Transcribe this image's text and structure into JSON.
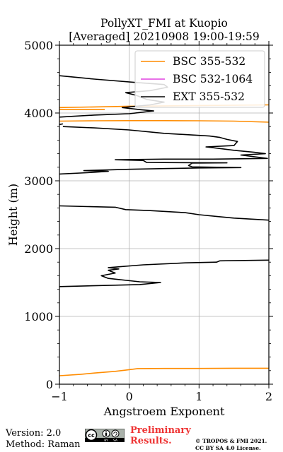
{
  "chart_data": {
    "type": "line",
    "title": "PollyXT_FMI at Kuopio",
    "subtitle": "[Averaged] 20210908 19:00-19:59",
    "xlabel": "Angstroem Exponent",
    "ylabel": "Height (m)",
    "xlim": [
      -1,
      2
    ],
    "ylim": [
      0,
      5000
    ],
    "x_ticks": [
      -1,
      0,
      1,
      2
    ],
    "x_tick_labels": [
      "−1",
      "0",
      "1",
      "2"
    ],
    "y_ticks": [
      0,
      1000,
      2000,
      3000,
      4000,
      5000
    ],
    "y_tick_labels": [
      "0",
      "1000",
      "2000",
      "3000",
      "4000",
      "5000"
    ],
    "grid": true,
    "legend_position": "top-right",
    "series": [
      {
        "name": "BSC 355-532",
        "color": "#ff8c00",
        "segments": [
          [
            [
              -1.0,
              125
            ],
            [
              -0.7,
              145
            ],
            [
              -0.5,
              165
            ],
            [
              -0.2,
              190
            ],
            [
              0.0,
              215
            ],
            [
              0.12,
              230
            ],
            [
              0.5,
              232
            ],
            [
              1.0,
              232
            ],
            [
              1.5,
              235
            ],
            [
              2.0,
              235
            ]
          ],
          [
            [
              -1.0,
              3880
            ],
            [
              -0.5,
              3885
            ],
            [
              0.0,
              3888
            ],
            [
              0.5,
              3887
            ],
            [
              1.0,
              3885
            ],
            [
              1.5,
              3880
            ],
            [
              2.0,
              3865
            ]
          ],
          [
            [
              -1.0,
              4080
            ],
            [
              -0.5,
              4090
            ],
            [
              0.0,
              4100
            ],
            [
              0.5,
              4105
            ],
            [
              1.0,
              4110
            ],
            [
              1.5,
              4115
            ],
            [
              2.0,
              4120
            ]
          ],
          [
            [
              -1.0,
              4050
            ],
            [
              -0.7,
              4050
            ],
            [
              -0.35,
              4050
            ]
          ]
        ]
      },
      {
        "name": "BSC 532-1064",
        "color": "#e040e0",
        "segments": []
      },
      {
        "name": "EXT 355-532",
        "color": "#000000",
        "segments": [
          [
            [
              -1.0,
              1440
            ],
            [
              -0.6,
              1450
            ],
            [
              -0.2,
              1460
            ],
            [
              0.15,
              1470
            ],
            [
              0.45,
              1500
            ],
            [
              0.15,
              1510
            ],
            [
              -0.3,
              1560
            ],
            [
              -0.4,
              1600
            ],
            [
              -0.2,
              1640
            ],
            [
              -0.3,
              1680
            ],
            [
              -0.15,
              1700
            ],
            [
              -0.3,
              1720
            ],
            [
              0.2,
              1760
            ],
            [
              0.8,
              1790
            ],
            [
              1.25,
              1800
            ],
            [
              1.3,
              1820
            ],
            [
              2.0,
              1830
            ]
          ],
          [
            [
              -1.0,
              2630
            ],
            [
              -0.6,
              2620
            ],
            [
              -0.2,
              2610
            ],
            [
              -0.05,
              2575
            ],
            [
              0.3,
              2560
            ],
            [
              0.8,
              2530
            ],
            [
              1.0,
              2500
            ],
            [
              1.3,
              2470
            ],
            [
              1.5,
              2450
            ],
            [
              2.0,
              2420
            ]
          ],
          [
            [
              -1.0,
              3100
            ],
            [
              -0.6,
              3120
            ],
            [
              -0.3,
              3140
            ],
            [
              -0.65,
              3150
            ],
            [
              -0.3,
              3160
            ],
            [
              0.0,
              3170
            ],
            [
              0.5,
              3180
            ],
            [
              1.0,
              3190
            ],
            [
              1.6,
              3195
            ],
            [
              0.9,
              3205
            ],
            [
              0.85,
              3225
            ],
            [
              0.9,
              3260
            ],
            [
              1.4,
              3265
            ],
            [
              0.25,
              3270
            ],
            [
              0.2,
              3300
            ],
            [
              -0.2,
              3310
            ],
            [
              0.5,
              3320
            ],
            [
              1.2,
              3320
            ],
            [
              1.98,
              3330
            ],
            [
              1.6,
              3380
            ],
            [
              1.95,
              3400
            ],
            [
              1.8,
              3420
            ],
            [
              1.5,
              3450
            ],
            [
              1.35,
              3470
            ],
            [
              1.1,
              3500
            ],
            [
              1.5,
              3520
            ],
            [
              1.55,
              3580
            ],
            [
              1.4,
              3610
            ],
            [
              1.3,
              3640
            ],
            [
              1.15,
              3660
            ],
            [
              0.5,
              3700
            ],
            [
              0.0,
              3750
            ],
            [
              -0.5,
              3780
            ],
            [
              -0.95,
              3800
            ]
          ],
          [
            [
              -1.0,
              3830
            ],
            [
              -0.95,
              3840
            ]
          ],
          [
            [
              -1.0,
              3940
            ],
            [
              -0.5,
              3970
            ],
            [
              0.0,
              3990
            ],
            [
              0.35,
              4030
            ],
            [
              0.15,
              4050
            ],
            [
              -0.1,
              4080
            ],
            [
              0.3,
              4120
            ],
            [
              0.5,
              4160
            ],
            [
              0.25,
              4200
            ],
            [
              0.1,
              4260
            ],
            [
              -0.05,
              4300
            ],
            [
              0.3,
              4330
            ],
            [
              0.55,
              4380
            ],
            [
              0.5,
              4420
            ],
            [
              0.1,
              4450
            ],
            [
              -0.5,
              4500
            ],
            [
              -1.0,
              4550
            ]
          ]
        ]
      }
    ]
  },
  "footer": {
    "version": "Version: 2.0",
    "method": "Method: Raman",
    "preliminary_line1": "Preliminary",
    "preliminary_line2": "Results.",
    "copyright_line1": "© TROPOS & FMI 2021.",
    "copyright_line2": "CC BY SA 4.0 License."
  },
  "license_badge": {
    "icon": "cc-by-sa-icon",
    "cc_text": "cc",
    "by_text": "BY",
    "sa_text": "SA"
  }
}
